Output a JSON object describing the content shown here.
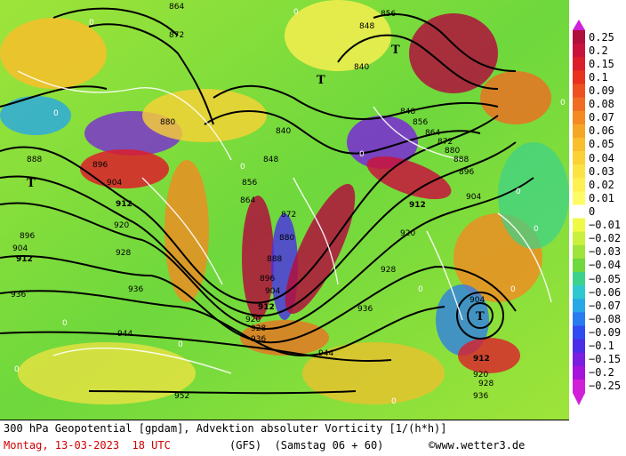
{
  "footer": {
    "title": "300 hPa Geopotential [gpdam], Advektion absoluter Vorticity [1/(h*h)]",
    "date": "Montag, 13-03-2023  18 UTC",
    "model": "(GFS)  (Samstag 06 + 60)",
    "credit": "©www.wetter3.de"
  },
  "legend": {
    "labels": [
      "0.25",
      "0.2",
      "0.15",
      "0.1",
      "0.09",
      "0.08",
      "0.07",
      "0.06",
      "0.05",
      "0.04",
      "0.03",
      "0.02",
      "0.01",
      "0",
      "−0.01",
      "−0.02",
      "−0.03",
      "−0.04",
      "−0.05",
      "−0.06",
      "−0.07",
      "−0.08",
      "−0.09",
      "−0.1",
      "−0.15",
      "−0.2",
      "−0.25"
    ],
    "colors": [
      "#b0103c",
      "#c8143c",
      "#dc1e2a",
      "#e8321e",
      "#ee5020",
      "#f06c22",
      "#f38a22",
      "#f6a626",
      "#f8be2c",
      "#fad236",
      "#fbe442",
      "#fdf050",
      "#fefb66",
      "#ffffff",
      "#f0fa46",
      "#c8f03c",
      "#9ee43a",
      "#6ed83c",
      "#3cd28c",
      "#30c8d0",
      "#28a8e6",
      "#2a7af0",
      "#2f4cf2",
      "#4a2ee8",
      "#7a1ee0",
      "#a614dc",
      "#d020d8"
    ]
  },
  "map": {
    "contour_labels": [
      "864",
      "872",
      "880",
      "888",
      "896",
      "904",
      "912",
      "920",
      "928",
      "936",
      "944",
      "952",
      "840",
      "848",
      "856"
    ],
    "low_marker": "T",
    "zero_label": "0"
  }
}
